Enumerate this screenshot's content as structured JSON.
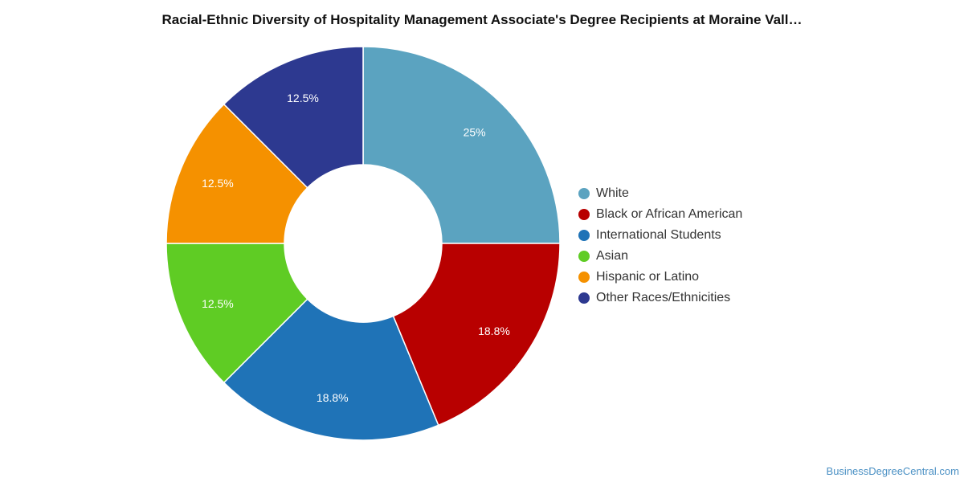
{
  "title": "Racial-Ethnic Diversity of Hospitality Management Associate's Degree Recipients at Moraine Vall…",
  "watermark": "BusinessDegreeCentral.com",
  "chart_data": {
    "type": "pie",
    "style": "donut",
    "legend_position": "right",
    "slices": [
      {
        "name": "White",
        "value": 25,
        "label": "25%",
        "color": "#5ba3c0"
      },
      {
        "name": "Black or African American",
        "value": 18.75,
        "label": "18.8%",
        "color": "#b80000"
      },
      {
        "name": "International Students",
        "value": 18.75,
        "label": "18.8%",
        "color": "#1f73b7"
      },
      {
        "name": "Asian",
        "value": 12.5,
        "label": "12.5%",
        "color": "#5fcc24"
      },
      {
        "name": "Hispanic or Latino",
        "value": 12.5,
        "label": "12.5%",
        "color": "#f59100"
      },
      {
        "name": "Other Races/Ethnicities",
        "value": 12.5,
        "label": "12.5%",
        "color": "#2d3990"
      }
    ]
  }
}
